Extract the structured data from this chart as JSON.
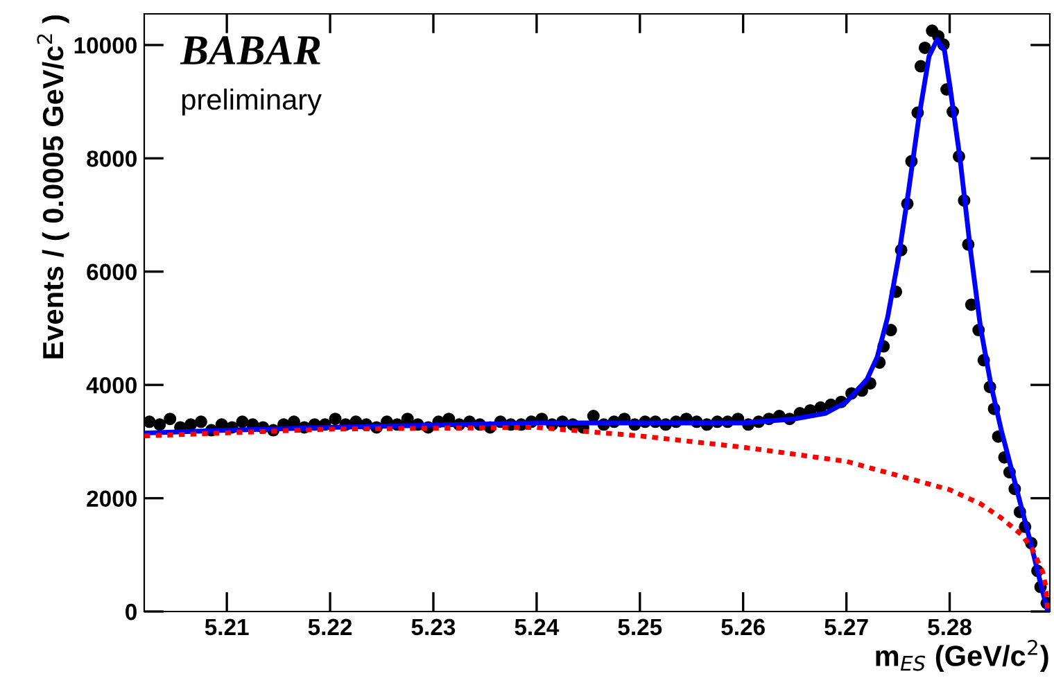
{
  "chart_data": {
    "type": "scatter",
    "xlabel": "m$_{ES}$ (GeV/c$^{2}$)",
    "ylabel": "Events / ( 0.0005 GeV/c$^{2}$ )",
    "annotations": [
      "BABAR",
      "preliminary"
    ],
    "xlim": [
      5.202,
      5.2897
    ],
    "ylim": [
      0,
      10550
    ],
    "xticks": [
      5.21,
      5.22,
      5.23,
      5.24,
      5.25,
      5.26,
      5.27,
      5.28
    ],
    "yticks": [
      0,
      2000,
      4000,
      6000,
      8000,
      10000
    ],
    "grid": false,
    "legend": false,
    "series": [
      {
        "color": "#000000",
        "marker": "circle",
        "x": [
          5.2025,
          5.2035,
          5.2045,
          5.2055,
          5.2065,
          5.2075,
          5.2085,
          5.2095,
          5.2105,
          5.2115,
          5.2125,
          5.2135,
          5.2145,
          5.2155,
          5.2165,
          5.2175,
          5.2185,
          5.2195,
          5.2205,
          5.2215,
          5.2225,
          5.2235,
          5.2245,
          5.2255,
          5.2265,
          5.2275,
          5.2285,
          5.2295,
          5.2305,
          5.2315,
          5.2325,
          5.2335,
          5.2345,
          5.2355,
          5.2365,
          5.2375,
          5.2385,
          5.2395,
          5.2405,
          5.2415,
          5.2425,
          5.2435,
          5.2445,
          5.2455,
          5.2465,
          5.2475,
          5.2485,
          5.2495,
          5.2505,
          5.2515,
          5.2525,
          5.2535,
          5.2545,
          5.2555,
          5.2565,
          5.2575,
          5.2585,
          5.2595,
          5.2605,
          5.2615,
          5.2625,
          5.2635,
          5.2645,
          5.2655,
          5.2665,
          5.2675,
          5.2685,
          5.2695,
          5.2705,
          5.2715,
          5.2723,
          5.2732,
          5.2736,
          5.2743,
          5.2748,
          5.2753,
          5.2759,
          5.2763,
          5.2769,
          5.2772,
          5.2776,
          5.2783,
          5.2789,
          5.2794,
          5.2797,
          5.2803,
          5.2809,
          5.2814,
          5.2818,
          5.2821,
          5.2828,
          5.2833,
          5.2839,
          5.2843,
          5.2847,
          5.2853,
          5.2858,
          5.2863,
          5.2868,
          5.2873,
          5.2879,
          5.2885,
          5.2888,
          5.2894
        ],
        "values": [
          3350,
          3300,
          3400,
          3250,
          3300,
          3350,
          3200,
          3300,
          3250,
          3350,
          3300,
          3250,
          3200,
          3300,
          3350,
          3250,
          3300,
          3300,
          3400,
          3300,
          3350,
          3300,
          3250,
          3350,
          3300,
          3400,
          3300,
          3250,
          3350,
          3400,
          3300,
          3350,
          3300,
          3250,
          3350,
          3300,
          3300,
          3350,
          3400,
          3300,
          3350,
          3300,
          3250,
          3450,
          3300,
          3350,
          3400,
          3300,
          3350,
          3350,
          3300,
          3350,
          3400,
          3350,
          3300,
          3350,
          3350,
          3400,
          3300,
          3350,
          3400,
          3450,
          3400,
          3500,
          3550,
          3600,
          3650,
          3700,
          3850,
          3900,
          4027,
          4395,
          4681,
          4968,
          5645,
          6380,
          7198,
          7948,
          8806,
          9625,
          9951,
          10253,
          10155,
          10008,
          9216,
          8824,
          8032,
          7255,
          6478,
          5417,
          4968,
          4436,
          3963,
          3578,
          3088,
          2721,
          2458,
          2164,
          1757,
          1495,
          1208,
          718,
          434,
          147
        ]
      },
      {
        "type": "line",
        "color": "#0000ff",
        "line_style": "solid",
        "marker": "none",
        "x": [
          5.202,
          5.21,
          5.22,
          5.24,
          5.26,
          5.265,
          5.268,
          5.27,
          5.272,
          5.273,
          5.274,
          5.275,
          5.276,
          5.277,
          5.278,
          5.2788,
          5.2795,
          5.28,
          5.281,
          5.282,
          5.283,
          5.284,
          5.285,
          5.286,
          5.287,
          5.288,
          5.2888,
          5.2895
        ],
        "values": [
          3150,
          3200,
          3250,
          3330,
          3330,
          3400,
          3500,
          3700,
          4100,
          4500,
          5200,
          6200,
          7400,
          8700,
          9800,
          10100,
          9900,
          9300,
          8000,
          6400,
          5000,
          4000,
          3200,
          2500,
          1800,
          1100,
          500,
          0
        ]
      },
      {
        "type": "line",
        "color": "#ff0000",
        "line_style": "dotted",
        "marker": "none",
        "x": [
          5.202,
          5.22,
          5.24,
          5.25,
          5.26,
          5.27,
          5.275,
          5.28,
          5.283,
          5.285,
          5.287,
          5.288,
          5.2885,
          5.289,
          5.2893,
          5.2895
        ],
        "values": [
          3100,
          3220,
          3250,
          3100,
          2900,
          2650,
          2400,
          2150,
          1900,
          1650,
          1350,
          1100,
          900,
          700,
          450,
          0
        ]
      }
    ]
  }
}
